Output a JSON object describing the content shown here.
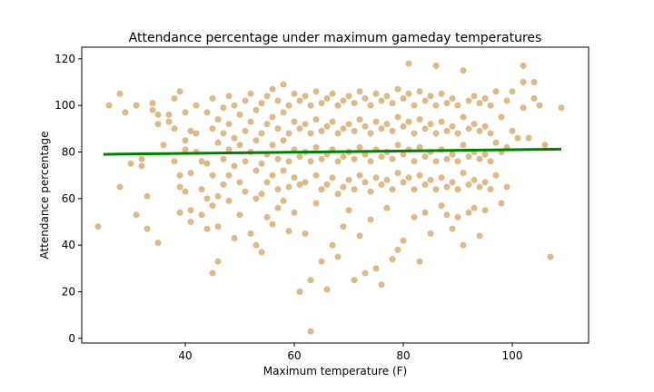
{
  "chart_data": {
    "type": "scatter",
    "title": "Attendance percentage under maximum gameday temperatures",
    "xlabel": "Maximum temperature (F)",
    "ylabel": "Attendance percentage",
    "xlim": [
      21,
      114
    ],
    "ylim": [
      -2,
      125
    ],
    "xticks": [
      40,
      60,
      80,
      100
    ],
    "yticks": [
      0,
      20,
      40,
      60,
      80,
      100,
      120
    ],
    "grid": false,
    "legend": "none",
    "colors": {
      "points": "#deb887",
      "trend": "#008000"
    },
    "trend_line": {
      "x": [
        25,
        109
      ],
      "y": [
        79,
        81.2
      ]
    },
    "series": [
      {
        "type": "scatter",
        "points": [
          [
            24,
            48
          ],
          [
            26,
            100
          ],
          [
            28,
            105
          ],
          [
            28,
            65
          ],
          [
            29,
            97
          ],
          [
            30,
            75
          ],
          [
            31,
            53
          ],
          [
            31,
            100
          ],
          [
            32,
            74
          ],
          [
            32,
            77
          ],
          [
            33,
            61
          ],
          [
            33,
            47
          ],
          [
            34,
            101
          ],
          [
            34,
            98
          ],
          [
            35,
            41
          ],
          [
            35,
            92
          ],
          [
            35,
            96
          ],
          [
            36,
            83
          ],
          [
            37,
            96
          ],
          [
            37,
            93
          ],
          [
            38,
            103
          ],
          [
            38,
            90
          ],
          [
            38,
            76
          ],
          [
            39,
            106
          ],
          [
            39,
            65
          ],
          [
            39,
            54
          ],
          [
            39,
            70
          ],
          [
            40,
            85
          ],
          [
            40,
            81
          ],
          [
            40,
            97
          ],
          [
            40,
            63
          ],
          [
            41,
            89
          ],
          [
            41,
            71
          ],
          [
            41,
            55
          ],
          [
            41,
            50
          ],
          [
            42,
            100
          ],
          [
            42,
            88
          ],
          [
            42,
            80
          ],
          [
            43,
            76
          ],
          [
            43,
            64
          ],
          [
            43,
            53
          ],
          [
            44,
            97
          ],
          [
            44,
            75
          ],
          [
            44,
            60
          ],
          [
            44,
            47
          ],
          [
            45,
            103
          ],
          [
            45,
            90
          ],
          [
            45,
            70
          ],
          [
            45,
            28
          ],
          [
            45,
            57
          ],
          [
            46,
            33
          ],
          [
            46,
            94
          ],
          [
            46,
            84
          ],
          [
            46,
            61
          ],
          [
            46,
            48
          ],
          [
            47,
            99
          ],
          [
            47,
            88
          ],
          [
            47,
            77
          ],
          [
            47,
            66
          ],
          [
            48,
            104
          ],
          [
            48,
            92
          ],
          [
            48,
            81
          ],
          [
            48,
            70
          ],
          [
            48,
            59
          ],
          [
            49,
            100
          ],
          [
            49,
            86
          ],
          [
            49,
            74
          ],
          [
            49,
            43
          ],
          [
            50,
            96
          ],
          [
            50,
            83
          ],
          [
            50,
            67
          ],
          [
            50,
            53
          ],
          [
            51,
            102
          ],
          [
            51,
            89
          ],
          [
            51,
            76
          ],
          [
            51,
            63
          ],
          [
            52,
            105
          ],
          [
            52,
            93
          ],
          [
            52,
            80
          ],
          [
            52,
            45
          ],
          [
            53,
            98
          ],
          [
            53,
            85
          ],
          [
            53,
            72
          ],
          [
            53,
            60
          ],
          [
            53,
            40
          ],
          [
            54,
            101
          ],
          [
            54,
            88
          ],
          [
            54,
            75
          ],
          [
            54,
            62
          ],
          [
            54,
            37
          ],
          [
            55,
            104
          ],
          [
            55,
            92
          ],
          [
            55,
            79
          ],
          [
            55,
            67
          ],
          [
            55,
            52
          ],
          [
            56,
            107
          ],
          [
            56,
            95
          ],
          [
            56,
            83
          ],
          [
            56,
            70
          ],
          [
            56,
            49
          ],
          [
            57,
            102
          ],
          [
            57,
            90
          ],
          [
            57,
            77
          ],
          [
            57,
            64
          ],
          [
            57,
            56
          ],
          [
            58,
            109
          ],
          [
            58,
            97
          ],
          [
            58,
            85
          ],
          [
            58,
            72
          ],
          [
            58,
            59
          ],
          [
            59,
            100
          ],
          [
            59,
            88
          ],
          [
            59,
            76
          ],
          [
            59,
            65
          ],
          [
            59,
            46
          ],
          [
            60,
            105
          ],
          [
            60,
            93
          ],
          [
            60,
            81
          ],
          [
            60,
            69
          ],
          [
            60,
            54
          ],
          [
            61,
            102
          ],
          [
            61,
            90
          ],
          [
            61,
            78
          ],
          [
            61,
            66
          ],
          [
            61,
            20
          ],
          [
            62,
            104
          ],
          [
            62,
            92
          ],
          [
            62,
            80
          ],
          [
            62,
            67
          ],
          [
            62,
            45
          ],
          [
            63,
            100
          ],
          [
            63,
            88
          ],
          [
            63,
            76
          ],
          [
            63,
            3
          ],
          [
            63,
            25
          ],
          [
            64,
            106
          ],
          [
            64,
            94
          ],
          [
            64,
            82
          ],
          [
            64,
            70
          ],
          [
            64,
            58
          ],
          [
            65,
            101
          ],
          [
            65,
            89
          ],
          [
            65,
            77
          ],
          [
            65,
            64
          ],
          [
            65,
            33
          ],
          [
            66,
            103
          ],
          [
            66,
            91
          ],
          [
            66,
            79
          ],
          [
            66,
            66
          ],
          [
            66,
            21
          ],
          [
            67,
            105
          ],
          [
            67,
            93
          ],
          [
            67,
            81
          ],
          [
            67,
            69
          ],
          [
            67,
            40
          ],
          [
            68,
            100
          ],
          [
            68,
            88
          ],
          [
            68,
            76
          ],
          [
            68,
            62
          ],
          [
            68,
            35
          ],
          [
            69,
            102
          ],
          [
            69,
            90
          ],
          [
            69,
            78
          ],
          [
            69,
            65
          ],
          [
            69,
            48
          ],
          [
            70,
            104
          ],
          [
            70,
            92
          ],
          [
            70,
            80
          ],
          [
            70,
            68
          ],
          [
            70,
            55
          ],
          [
            71,
            101
          ],
          [
            71,
            89
          ],
          [
            71,
            77
          ],
          [
            71,
            64
          ],
          [
            71,
            25
          ],
          [
            72,
            106
          ],
          [
            72,
            94
          ],
          [
            72,
            82
          ],
          [
            72,
            70
          ],
          [
            72,
            44
          ],
          [
            73,
            103
          ],
          [
            73,
            91
          ],
          [
            73,
            79
          ],
          [
            73,
            67
          ],
          [
            73,
            28
          ],
          [
            74,
            100
          ],
          [
            74,
            88
          ],
          [
            74,
            76
          ],
          [
            74,
            63
          ],
          [
            74,
            51
          ],
          [
            75,
            105
          ],
          [
            75,
            93
          ],
          [
            75,
            81
          ],
          [
            75,
            69
          ],
          [
            75,
            30
          ],
          [
            76,
            102
          ],
          [
            76,
            90
          ],
          [
            76,
            78
          ],
          [
            76,
            66
          ],
          [
            76,
            23
          ],
          [
            77,
            104
          ],
          [
            77,
            92
          ],
          [
            77,
            80
          ],
          [
            77,
            68
          ],
          [
            77,
            56
          ],
          [
            78,
            101
          ],
          [
            78,
            89
          ],
          [
            78,
            77
          ],
          [
            78,
            64
          ],
          [
            78,
            34
          ],
          [
            79,
            107
          ],
          [
            79,
            95
          ],
          [
            79,
            83
          ],
          [
            79,
            71
          ],
          [
            79,
            38
          ],
          [
            80,
            103
          ],
          [
            80,
            91
          ],
          [
            80,
            79
          ],
          [
            80,
            67
          ],
          [
            80,
            42
          ],
          [
            81,
            118
          ],
          [
            81,
            105
          ],
          [
            81,
            93
          ],
          [
            81,
            81
          ],
          [
            81,
            69
          ],
          [
            82,
            100
          ],
          [
            82,
            88
          ],
          [
            82,
            76
          ],
          [
            82,
            64
          ],
          [
            82,
            52
          ],
          [
            83,
            106
          ],
          [
            83,
            94
          ],
          [
            83,
            82
          ],
          [
            83,
            70
          ],
          [
            83,
            33
          ],
          [
            84,
            102
          ],
          [
            84,
            90
          ],
          [
            84,
            78
          ],
          [
            84,
            66
          ],
          [
            84,
            54
          ],
          [
            85,
            104
          ],
          [
            85,
            92
          ],
          [
            85,
            80
          ],
          [
            85,
            68
          ],
          [
            85,
            45
          ],
          [
            86,
            117
          ],
          [
            86,
            100
          ],
          [
            86,
            88
          ],
          [
            86,
            76
          ],
          [
            86,
            64
          ],
          [
            87,
            105
          ],
          [
            87,
            93
          ],
          [
            87,
            81
          ],
          [
            87,
            69
          ],
          [
            87,
            57
          ],
          [
            88,
            101
          ],
          [
            88,
            89
          ],
          [
            88,
            77
          ],
          [
            88,
            65
          ],
          [
            88,
            53
          ],
          [
            89,
            103
          ],
          [
            89,
            91
          ],
          [
            89,
            79
          ],
          [
            89,
            67
          ],
          [
            89,
            47
          ],
          [
            90,
            100
          ],
          [
            90,
            88
          ],
          [
            90,
            76
          ],
          [
            90,
            64
          ],
          [
            90,
            52
          ],
          [
            91,
            115
          ],
          [
            91,
            95
          ],
          [
            91,
            83
          ],
          [
            91,
            71
          ],
          [
            91,
            40
          ],
          [
            92,
            102
          ],
          [
            92,
            90
          ],
          [
            92,
            78
          ],
          [
            92,
            66
          ],
          [
            92,
            54
          ],
          [
            93,
            104
          ],
          [
            93,
            92
          ],
          [
            93,
            80
          ],
          [
            93,
            68
          ],
          [
            93,
            56
          ],
          [
            94,
            101
          ],
          [
            94,
            89
          ],
          [
            94,
            77
          ],
          [
            94,
            65
          ],
          [
            94,
            44
          ],
          [
            95,
            103
          ],
          [
            95,
            91
          ],
          [
            95,
            79
          ],
          [
            95,
            67
          ],
          [
            95,
            55
          ],
          [
            96,
            100
          ],
          [
            96,
            88
          ],
          [
            96,
            76
          ],
          [
            96,
            64
          ],
          [
            97,
            106
          ],
          [
            97,
            84
          ],
          [
            97,
            70
          ],
          [
            98,
            95
          ],
          [
            98,
            80
          ],
          [
            98,
            58
          ],
          [
            99,
            102
          ],
          [
            99,
            82
          ],
          [
            99,
            65
          ],
          [
            100,
            106
          ],
          [
            100,
            89
          ],
          [
            101,
            86
          ],
          [
            102,
            117
          ],
          [
            102,
            110
          ],
          [
            102,
            99
          ],
          [
            103,
            86
          ],
          [
            104,
            110
          ],
          [
            104,
            103
          ],
          [
            105,
            100
          ],
          [
            106,
            83
          ],
          [
            107,
            35
          ],
          [
            109,
            99
          ]
        ]
      }
    ]
  }
}
